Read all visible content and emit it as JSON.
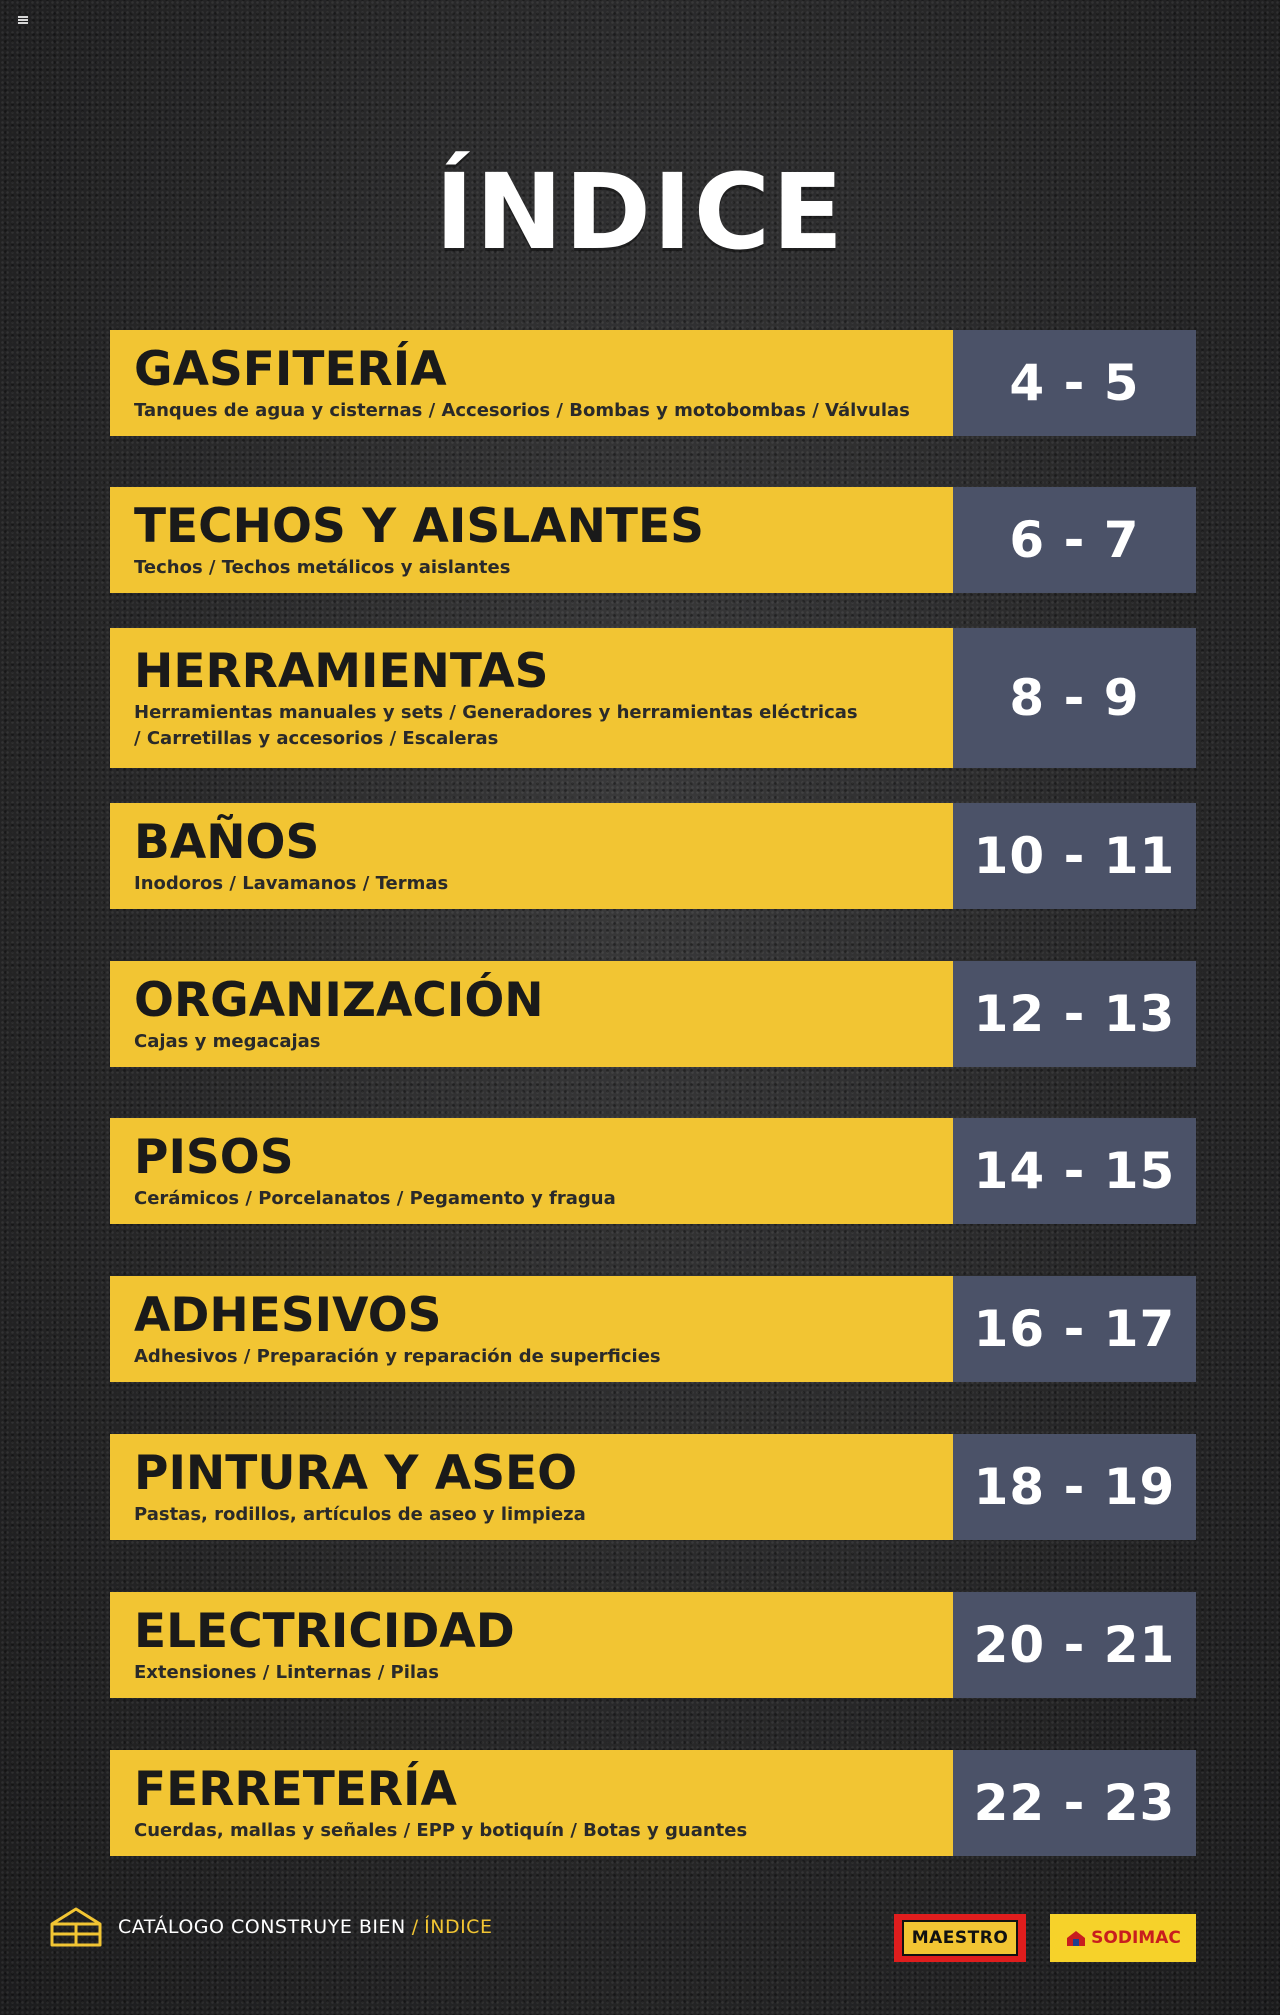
{
  "title": "ÍNDICE",
  "sections": [
    {
      "name": "GASFITERÍA",
      "description": "Tanques de agua y cisternas / Accesorios / Bombas y motobombas / Válvulas",
      "pages": "4 - 5"
    },
    {
      "name": "TECHOS Y AISLANTES",
      "description": "Techos / Techos metálicos y aislantes",
      "pages": "6 - 7"
    },
    {
      "name": "HERRAMIENTAS",
      "description": "Herramientas manuales y sets / Generadores y herramientas eléctricas / Carretillas y accesorios / Escaleras",
      "pages": "8 - 9"
    },
    {
      "name": "BAÑOS",
      "description": "Inodoros / Lavamanos / Termas",
      "pages": "10 - 11"
    },
    {
      "name": "ORGANIZACIÓN",
      "description": "Cajas y megacajas",
      "pages": "12 - 13"
    },
    {
      "name": "PISOS",
      "description": "Cerámicos / Porcelanatos / Pegamento y fragua",
      "pages": "14 - 15"
    },
    {
      "name": "ADHESIVOS",
      "description": "Adhesivos / Preparación y reparación de superficies",
      "pages": "16 - 17"
    },
    {
      "name": "PINTURA Y ASEO",
      "description": "Pastas, rodillos, artículos de aseo y limpieza",
      "pages": "18 - 19"
    },
    {
      "name": "ELECTRICIDAD",
      "description": "Extensiones / Linternas / Pilas",
      "pages": "20 - 21"
    },
    {
      "name": "FERRETERÍA",
      "description": "Cuerdas, mallas y señales / EPP y botiquín / Botas y guantes",
      "pages": "22 - 23"
    }
  ],
  "footer": {
    "catalog": "CATÁLOGO CONSTRUYE BIEN",
    "separator": "/",
    "current": "ÍNDICE",
    "icon": "house-outline-icon"
  },
  "logos": {
    "maestro": "MAESTRO",
    "sodimac": "SODIMAC"
  },
  "colors": {
    "accent_yellow": "#f2c533",
    "page_box": "#4b5268",
    "background": "#2a2a2b",
    "maestro_red": "#e01d1d"
  }
}
